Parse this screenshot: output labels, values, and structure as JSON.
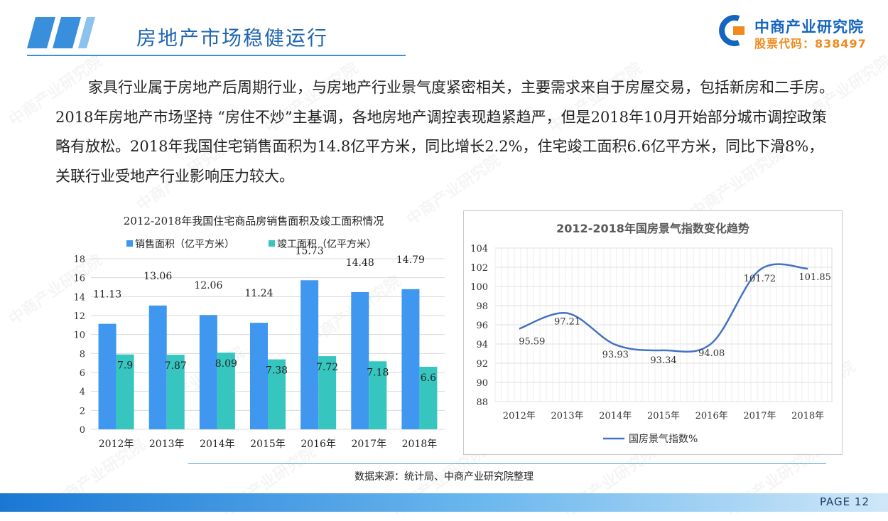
{
  "header": {
    "title": "房地产市场稳健运行",
    "logo_name": "中商产业研究院",
    "logo_code": "股票代码：838497"
  },
  "body_text": "家具行业属于房地产后周期行业，与房地产行业景气度紧密相关，主要需求来自于房屋交易，包括新房和二手房。2018年房地产市场坚持 “房住不炒”主基调，各地房地产调控表现趋紧趋严，但是2018年10月开始部分城市调控政策略有放松。2018年我国住宅销售面积为14.8亿平方米，同比增长2.2%，住宅竣工面积6.6亿平方米，同比下滑8%，关联行业受地产行业影响压力较大。",
  "watermark": "中商产业研究院",
  "source": "数据来源：统计局、中商产业研究院整理",
  "footer": {
    "page": "PAGE  12"
  },
  "chart_data": [
    {
      "type": "bar",
      "title": "2012-2018年我国住宅商品房销售面积及竣工面积情况",
      "categories": [
        "2012年",
        "2013年",
        "2014年",
        "2015年",
        "2016年",
        "2017年",
        "2018年"
      ],
      "series": [
        {
          "name": "销售面积（亿平方米）",
          "values": [
            11.13,
            13.06,
            12.06,
            11.24,
            15.73,
            14.48,
            14.79
          ],
          "labels": [
            "11.13",
            "13.06",
            "12.06",
            "11.24",
            "15.73",
            "14.48",
            "14.79"
          ],
          "color": "#3f97f0"
        },
        {
          "name": "竣工面积（亿平方米）",
          "values": [
            7.9,
            7.87,
            8.09,
            7.38,
            7.72,
            7.18,
            6.6
          ],
          "labels": [
            "7.9",
            "7.87",
            "8.09",
            "7.38",
            "7.72",
            "7.18",
            "6.6"
          ],
          "color": "#36c6bf"
        }
      ],
      "yticks": [
        "0",
        "2",
        "4",
        "6",
        "8",
        "10",
        "12",
        "14",
        "16",
        "18"
      ],
      "ylim": [
        0,
        18
      ],
      "legend": "top",
      "grid": true
    },
    {
      "type": "line",
      "title": "2012-2018年国房景气指数变化趋势",
      "categories": [
        "2012年",
        "2013年",
        "2014年",
        "2015年",
        "2016年",
        "2017年",
        "2018年"
      ],
      "series": [
        {
          "name": "国房景气指数%",
          "values": [
            95.59,
            97.21,
            93.93,
            93.34,
            94.08,
            101.72,
            101.85
          ],
          "labels": [
            "95.59",
            "97.21",
            "93.93",
            "93.34",
            "94.08",
            "101.72",
            "101.85"
          ],
          "color": "#4472c4"
        }
      ],
      "yticks": [
        "88",
        "90",
        "92",
        "94",
        "96",
        "98",
        "100",
        "102",
        "104"
      ],
      "ylim": [
        88,
        104
      ],
      "legend": "bottom",
      "grid": true
    }
  ]
}
